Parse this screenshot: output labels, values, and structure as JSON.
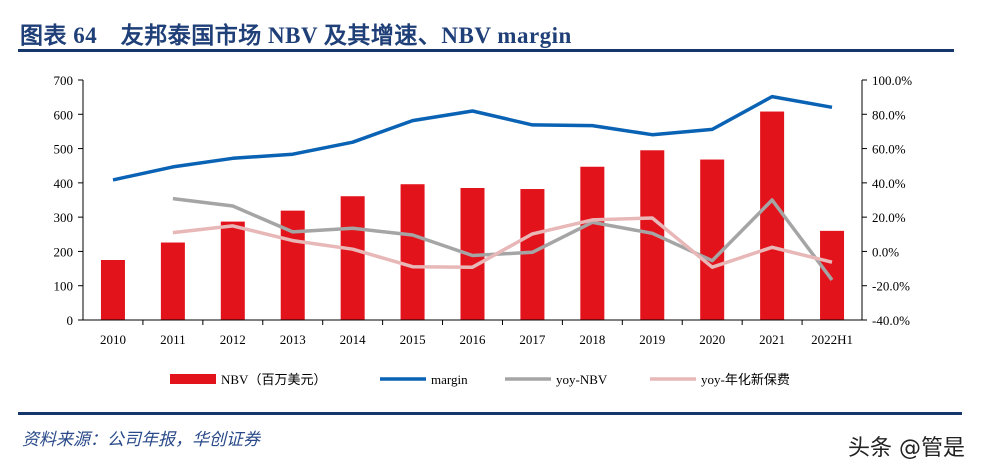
{
  "title": "图表 64　友邦泰国市场 NBV 及其增速、NBV margin",
  "source": "资料来源：公司年报，华创证券",
  "watermark": "头条 @管是",
  "chart_data": {
    "type": "bar+line",
    "categories": [
      "2010",
      "2011",
      "2012",
      "2013",
      "2014",
      "2015",
      "2016",
      "2017",
      "2018",
      "2019",
      "2020",
      "2021",
      "2022H1"
    ],
    "left_axis": {
      "ylim": [
        0,
        700
      ],
      "ticks": [
        "0",
        "100",
        "200",
        "300",
        "400",
        "500",
        "600",
        "700"
      ]
    },
    "right_axis": {
      "ylim": [
        -40,
        100
      ],
      "ticks": [
        "-40.0%",
        "-20.0%",
        "0.0%",
        "20.0%",
        "40.0%",
        "60.0%",
        "80.0%",
        "100.0%"
      ]
    },
    "legend_position": "bottom",
    "grid": false,
    "series": [
      {
        "name": "NBV（百万美元）",
        "type": "bar",
        "axis": "left",
        "color": "#e3131b",
        "values": [
          175,
          226,
          287,
          319,
          361,
          396,
          385,
          382,
          447,
          495,
          468,
          608,
          260
        ]
      },
      {
        "name": "margin",
        "type": "line",
        "axis": "right",
        "color": "#0a62b4",
        "values": [
          41.7,
          49.3,
          54.3,
          56.7,
          63.7,
          76.3,
          81.9,
          73.8,
          73.4,
          68.1,
          71.2,
          90.3,
          84.1
        ]
      },
      {
        "name": "yoy-NBV",
        "type": "line",
        "axis": "right",
        "color": "#a5a5a5",
        "values": [
          null,
          30.8,
          26.5,
          11.4,
          13.5,
          9.6,
          -2.4,
          -0.5,
          17.0,
          10.6,
          -5.4,
          30.0,
          -16.6
        ]
      },
      {
        "name": "yoy-年化新保费",
        "type": "line",
        "axis": "right",
        "color": "#e8b7b7",
        "values": [
          null,
          11.0,
          14.9,
          6.3,
          1.3,
          -8.9,
          -9.2,
          10.2,
          18.4,
          19.5,
          -9.2,
          2.4,
          -6.3
        ]
      }
    ]
  }
}
